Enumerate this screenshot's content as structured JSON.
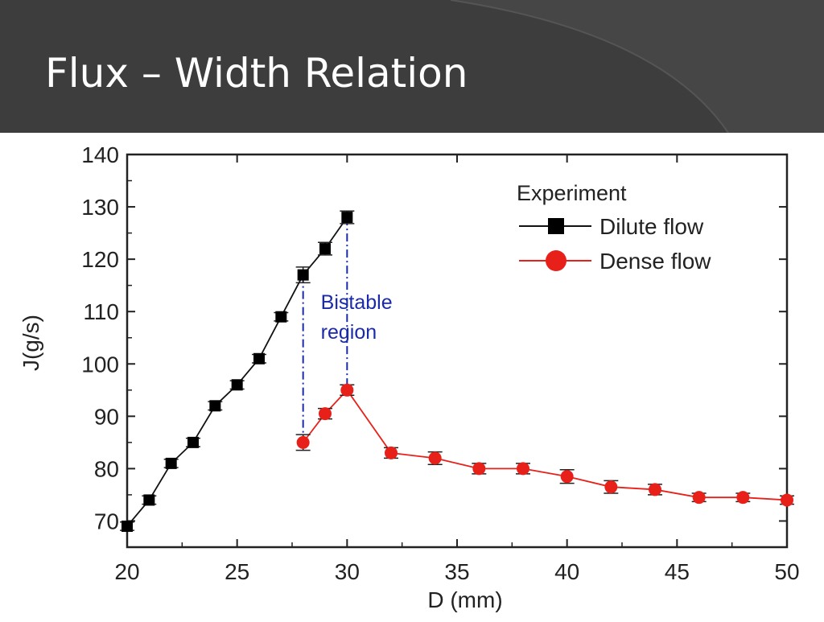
{
  "slide": {
    "title": "Flux – Width Relation"
  },
  "chart_data": {
    "type": "line",
    "xlabel": "D (mm)",
    "ylabel": "J(g/s)",
    "xlim": [
      20,
      50
    ],
    "ylim": [
      65,
      140
    ],
    "x_ticks": [
      20,
      25,
      30,
      35,
      40,
      45,
      50
    ],
    "y_ticks": [
      70,
      80,
      90,
      100,
      110,
      120,
      130,
      140
    ],
    "grid": false,
    "legend": {
      "title": "Experiment",
      "position": "top-right"
    },
    "annotation": {
      "lines": [
        "Bistable",
        "region"
      ],
      "x_from": 28,
      "x_to": 30
    },
    "series": [
      {
        "name": "Dilute flow",
        "color": "#000000",
        "marker": "square",
        "x": [
          20,
          21,
          22,
          23,
          24,
          25,
          26,
          27,
          28,
          29,
          30
        ],
        "y": [
          69,
          74,
          81,
          85,
          92,
          96,
          101,
          109,
          117,
          122,
          128
        ],
        "err": [
          0.8,
          0.8,
          0.8,
          0.8,
          0.8,
          0.8,
          0.8,
          0.8,
          1.5,
          1.2,
          1.2
        ]
      },
      {
        "name": "Dense flow",
        "color": "#e8201a",
        "marker": "circle",
        "x": [
          28,
          29,
          30,
          32,
          34,
          36,
          38,
          40,
          42,
          44,
          46,
          48,
          50
        ],
        "y": [
          85,
          90.5,
          95,
          83,
          82,
          80,
          80,
          78.5,
          76.5,
          76,
          74.5,
          74.5,
          74
        ],
        "err": [
          1.5,
          1,
          1,
          1,
          1.2,
          1,
          1,
          1.3,
          1.2,
          1,
          0.8,
          0.8,
          0.8
        ]
      }
    ]
  }
}
